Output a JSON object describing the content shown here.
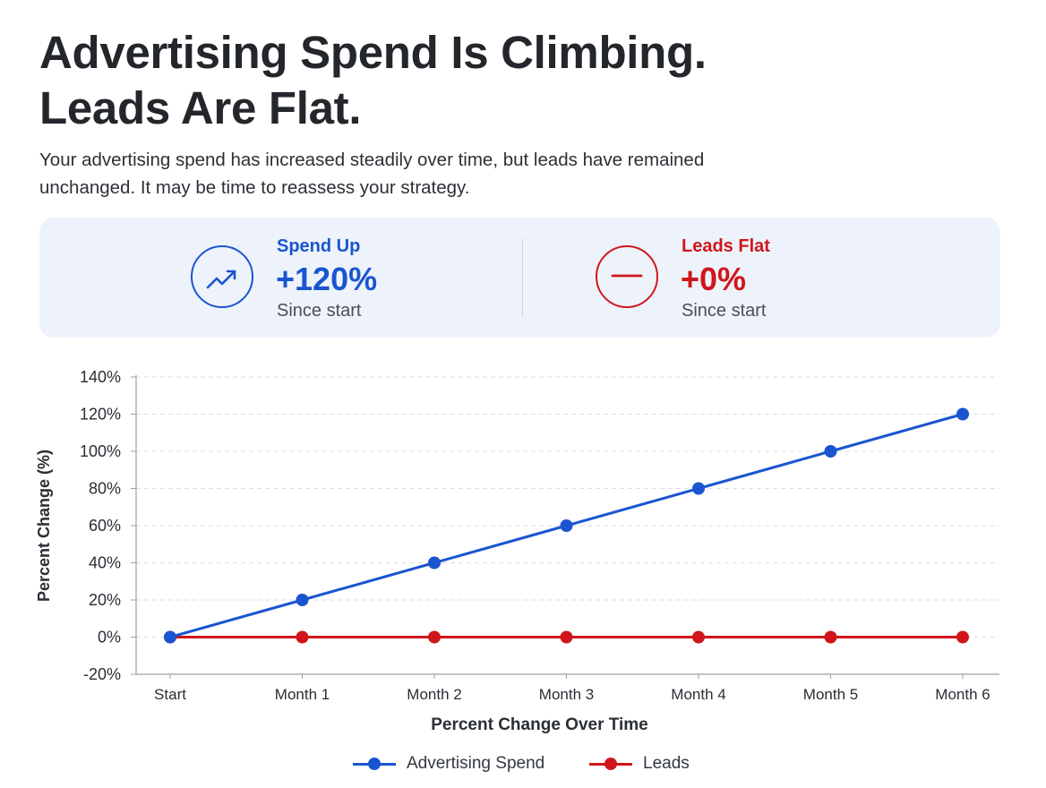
{
  "header": {
    "title_line1": "Advertising Spend Is Climbing.",
    "title_line2": "Leads Are Flat.",
    "subtitle_line1": "Your advertising spend has increased steadily over time, but leads have remained",
    "subtitle_line2": "unchanged. It may be time to reassess your strategy."
  },
  "summary": {
    "spend": {
      "icon": "trending-up-icon",
      "label": "Spend Up",
      "value": "+120%",
      "note": "Since start",
      "color": "#1a55d0"
    },
    "leads": {
      "icon": "minus-icon",
      "label": "Leads Flat",
      "value": "+0%",
      "note": "Since start",
      "color": "#d0161c"
    }
  },
  "chart_data": {
    "type": "line",
    "title": "",
    "xlabel": "Percent Change Over Time",
    "ylabel": "Percent Change (%)",
    "categories": [
      "Start",
      "Month 1",
      "Month 2",
      "Month 3",
      "Month 4",
      "Month 5",
      "Month 6"
    ],
    "ylim": [
      -20,
      140
    ],
    "yticks": [
      -20,
      0,
      20,
      40,
      60,
      80,
      100,
      120,
      140
    ],
    "ytick_labels": [
      "-20%",
      "0%",
      "20%",
      "40%",
      "60%",
      "80%",
      "100%",
      "120%",
      "140%"
    ],
    "grid": true,
    "legend_position": "bottom-center",
    "series": [
      {
        "name": "Advertising Spend",
        "color": "#1a55d0",
        "values": [
          0,
          20,
          40,
          60,
          80,
          100,
          120
        ]
      },
      {
        "name": "Leads",
        "color": "#d0161c",
        "values": [
          0,
          0,
          0,
          0,
          0,
          0,
          0
        ]
      }
    ]
  }
}
